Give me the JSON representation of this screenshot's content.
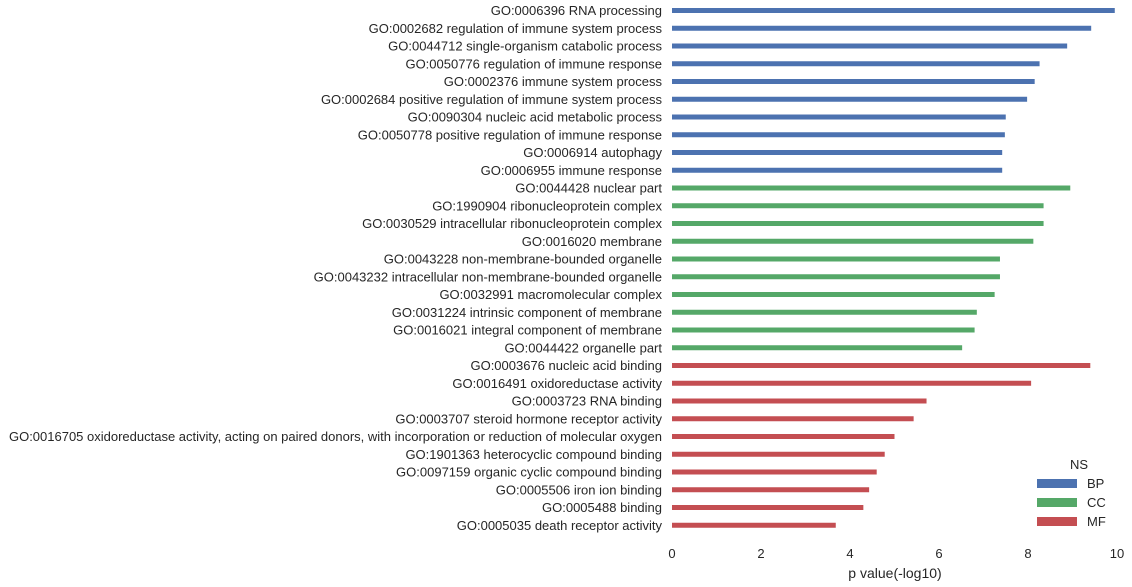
{
  "chart_data": {
    "type": "bar",
    "orientation": "horizontal",
    "xlabel": "p value(-log10)",
    "xlim": [
      0,
      10
    ],
    "xticks": [
      0,
      2,
      4,
      6,
      8,
      10
    ],
    "grid": false,
    "legend": {
      "title": "NS",
      "position": "bottom-right",
      "entries": [
        {
          "name": "BP",
          "color": "#4c72b0"
        },
        {
          "name": "CC",
          "color": "#55a868"
        },
        {
          "name": "MF",
          "color": "#c44e52"
        }
      ]
    },
    "categories": [
      "GO:0006396 RNA processing",
      "GO:0002682 regulation of immune system process",
      "GO:0044712 single-organism catabolic process",
      "GO:0050776 regulation of immune response",
      "GO:0002376 immune system process",
      "GO:0002684 positive regulation of immune system process",
      "GO:0090304 nucleic acid metabolic process",
      "GO:0050778 positive regulation of immune response",
      "GO:0006914 autophagy",
      "GO:0006955 immune response",
      "GO:0044428 nuclear part",
      "GO:1990904 ribonucleoprotein complex",
      "GO:0030529 intracellular ribonucleoprotein complex",
      "GO:0016020 membrane",
      "GO:0043228 non-membrane-bounded organelle",
      "GO:0043232 intracellular non-membrane-bounded organelle",
      "GO:0032991 macromolecular complex",
      "GO:0031224 intrinsic component of membrane",
      "GO:0016021 integral component of membrane",
      "GO:0044422 organelle part",
      "GO:0003676 nucleic acid binding",
      "GO:0016491 oxidoreductase activity",
      "GO:0003723 RNA binding",
      "GO:0003707 steroid hormone receptor activity",
      "GO:0016705 oxidoreductase activity, acting on paired donors, with incorporation or reduction of molecular oxygen",
      "GO:1901363 heterocyclic compound binding",
      "GO:0097159 organic cyclic compound binding",
      "GO:0005506 iron ion binding",
      "GO:0005488 binding",
      "GO:0005035 death receptor activity"
    ],
    "groups": [
      "BP",
      "BP",
      "BP",
      "BP",
      "BP",
      "BP",
      "BP",
      "BP",
      "BP",
      "BP",
      "CC",
      "CC",
      "CC",
      "CC",
      "CC",
      "CC",
      "CC",
      "CC",
      "CC",
      "CC",
      "MF",
      "MF",
      "MF",
      "MF",
      "MF",
      "MF",
      "MF",
      "MF",
      "MF",
      "MF"
    ],
    "values": [
      9.95,
      9.42,
      8.88,
      8.26,
      8.15,
      7.98,
      7.5,
      7.48,
      7.42,
      7.42,
      8.95,
      8.35,
      8.35,
      8.12,
      7.37,
      7.37,
      7.25,
      6.85,
      6.8,
      6.52,
      9.4,
      8.07,
      5.72,
      5.43,
      5.0,
      4.78,
      4.6,
      4.43,
      4.3,
      3.68
    ]
  }
}
